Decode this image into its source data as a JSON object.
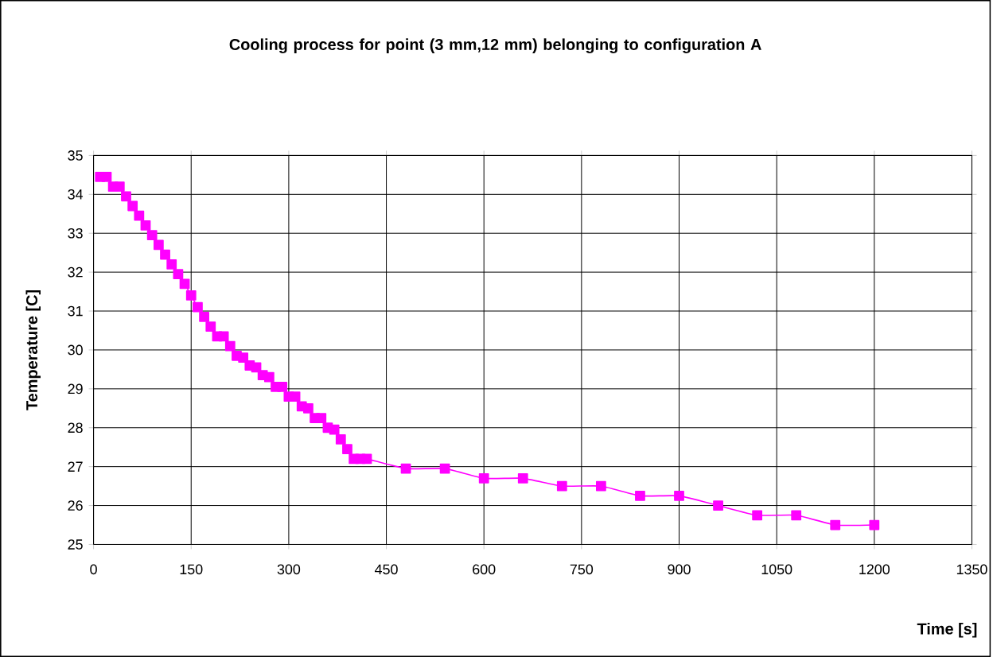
{
  "chart_data": {
    "type": "line",
    "title": "Cooling process for point (3 mm,12 mm) belonging to configuration A",
    "xlabel": "Time [s]",
    "ylabel": "Temperature [C]",
    "x": [
      10,
      20,
      30,
      40,
      50,
      60,
      70,
      80,
      90,
      100,
      110,
      120,
      130,
      140,
      150,
      160,
      170,
      180,
      190,
      200,
      210,
      220,
      230,
      240,
      250,
      260,
      270,
      280,
      290,
      300,
      310,
      320,
      330,
      340,
      350,
      360,
      370,
      380,
      390,
      400,
      410,
      420,
      480,
      540,
      600,
      660,
      720,
      780,
      840,
      900,
      960,
      1020,
      1080,
      1140,
      1200
    ],
    "series": [
      {
        "color": "#ff00ff",
        "values": [
          34.45,
          34.45,
          34.2,
          34.2,
          33.95,
          33.7,
          33.45,
          33.2,
          32.95,
          32.7,
          32.45,
          32.2,
          31.95,
          31.7,
          31.4,
          31.1,
          30.85,
          30.6,
          30.35,
          30.35,
          30.1,
          29.85,
          29.8,
          29.6,
          29.55,
          29.35,
          29.3,
          29.05,
          29.05,
          28.8,
          28.8,
          28.55,
          28.5,
          28.25,
          28.25,
          28.0,
          27.95,
          27.7,
          27.45,
          27.2,
          27.2,
          27.2,
          26.95,
          26.95,
          26.7,
          26.7,
          26.5,
          26.5,
          26.25,
          26.25,
          26.0,
          25.75,
          25.75,
          25.5,
          25.5
        ]
      }
    ],
    "xlim": [
      0,
      1350
    ],
    "ylim": [
      25,
      35
    ],
    "xticks": [
      0,
      150,
      300,
      450,
      600,
      750,
      900,
      1050,
      1200,
      1350
    ],
    "yticks": [
      25,
      26,
      27,
      28,
      29,
      30,
      31,
      32,
      33,
      34,
      35
    ],
    "grid": true,
    "marker": "square",
    "line_style": "solid"
  }
}
